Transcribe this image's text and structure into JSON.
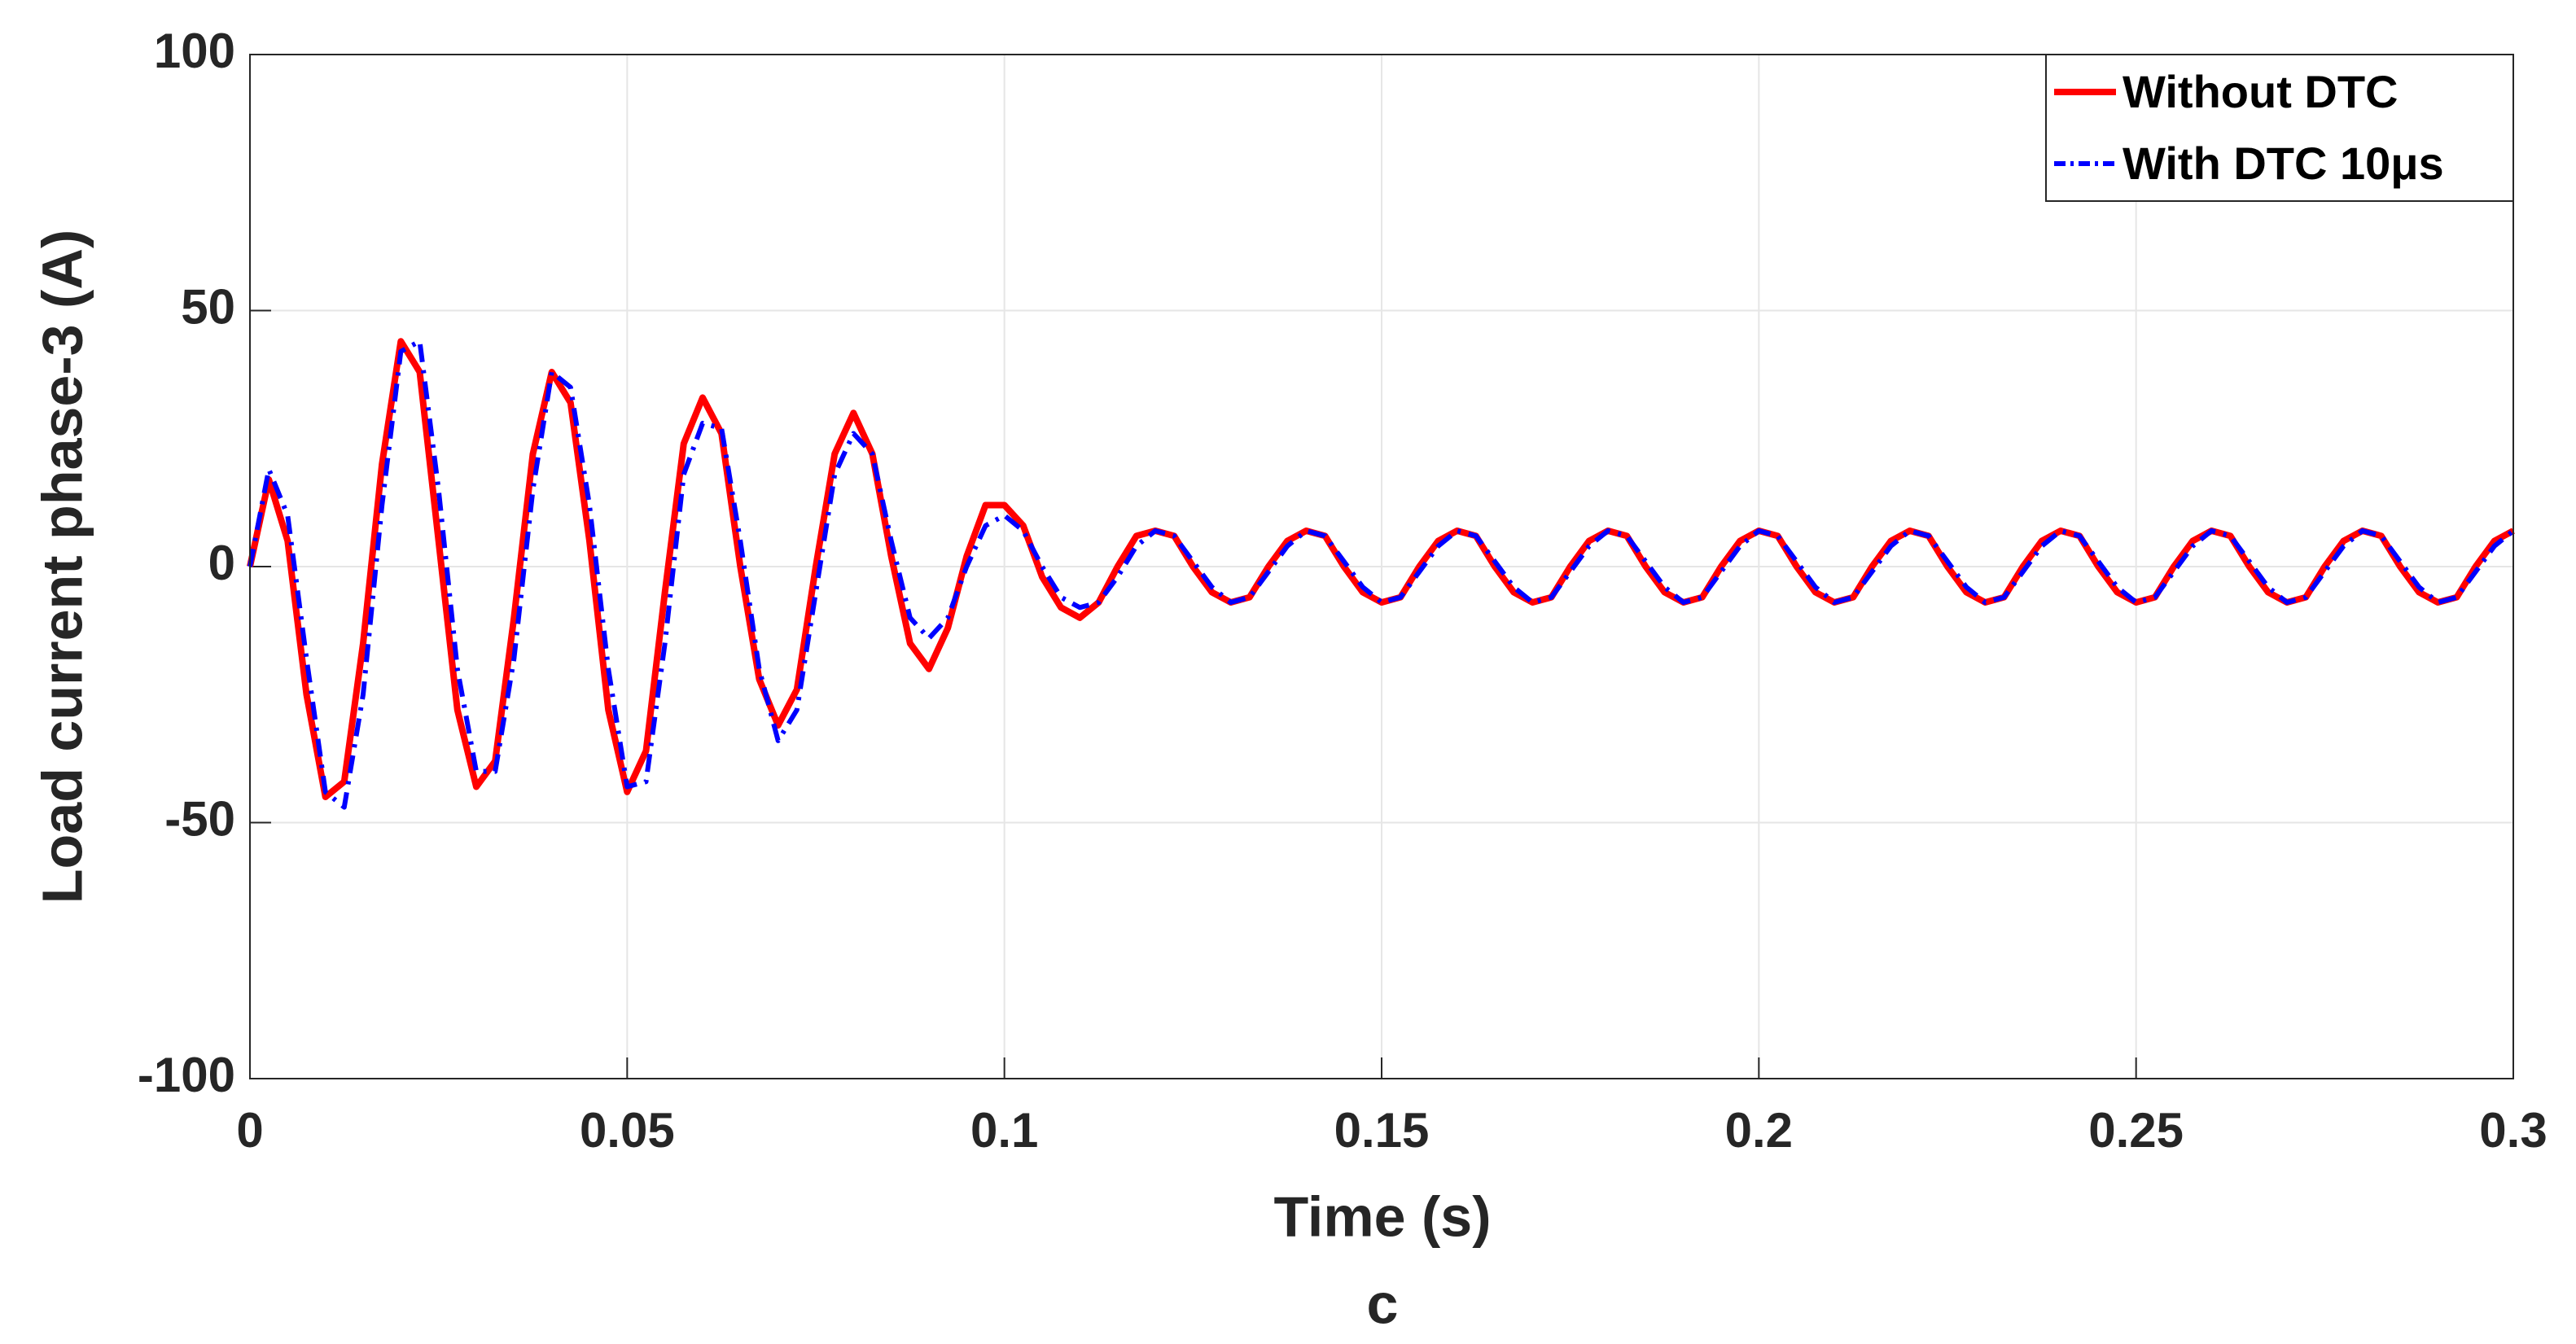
{
  "chart_data": {
    "type": "line",
    "caption": "c",
    "x_label": "Time (s)",
    "y_label": "Load current phase-3 (A)",
    "x": [
      0,
      0.0025,
      0.005,
      0.0075,
      0.01,
      0.0125,
      0.015,
      0.0175,
      0.02,
      0.0225,
      0.025,
      0.0275,
      0.03,
      0.0325,
      0.035,
      0.0375,
      0.04,
      0.0425,
      0.045,
      0.0475,
      0.05,
      0.0525,
      0.055,
      0.0575,
      0.06,
      0.0625,
      0.065,
      0.0675,
      0.07,
      0.0725,
      0.075,
      0.0775,
      0.08,
      0.0825,
      0.085,
      0.0875,
      0.09,
      0.0925,
      0.095,
      0.0975,
      0.1,
      0.1025,
      0.105,
      0.1075,
      0.11,
      0.1125,
      0.115,
      0.1175,
      0.12,
      0.1225,
      0.125,
      0.1275,
      0.13,
      0.1325,
      0.135,
      0.1375,
      0.14,
      0.1425,
      0.145,
      0.1475,
      0.15,
      0.1525,
      0.155,
      0.1575,
      0.16,
      0.1625,
      0.165,
      0.1675,
      0.17,
      0.1725,
      0.175,
      0.1775,
      0.18,
      0.1825,
      0.185,
      0.1875,
      0.19,
      0.1925,
      0.195,
      0.1975,
      0.2,
      0.2025,
      0.205,
      0.2075,
      0.21,
      0.2125,
      0.215,
      0.2175,
      0.22,
      0.2225,
      0.225,
      0.2275,
      0.23,
      0.2325,
      0.235,
      0.2375,
      0.24,
      0.2425,
      0.245,
      0.2475,
      0.25,
      0.2525,
      0.255,
      0.2575,
      0.26,
      0.2625,
      0.265,
      0.2675,
      0.27,
      0.2725,
      0.275,
      0.2775,
      0.28,
      0.2825,
      0.285,
      0.2875,
      0.29,
      0.2925,
      0.295,
      0.2975,
      0.3
    ],
    "series": [
      {
        "name": "Without DTC",
        "color": "#ff0000",
        "line_style": "solid",
        "values": [
          0,
          17,
          5,
          -25,
          -45,
          -42,
          -15,
          20,
          44,
          38,
          5,
          -28,
          -43,
          -38,
          -10,
          22,
          38,
          32,
          5,
          -28,
          -44,
          -36,
          -5,
          24,
          33,
          26,
          0,
          -22,
          -31,
          -24,
          0,
          22,
          30,
          22,
          2,
          -15,
          -20,
          -12,
          2,
          12,
          12,
          8,
          -2,
          -8,
          -10,
          -7,
          0,
          6,
          7,
          6,
          0,
          -5,
          -7,
          -6,
          0,
          5,
          7,
          6,
          0,
          -5,
          -7,
          -6,
          0,
          5,
          7,
          6,
          0,
          -5,
          -7,
          -6,
          0,
          5,
          7,
          6,
          0,
          -5,
          -7,
          -6,
          0,
          5,
          7,
          6,
          0,
          -5,
          -7,
          -6,
          0,
          5,
          7,
          6,
          0,
          -5,
          -7,
          -6,
          0,
          5,
          7,
          6,
          0,
          -5,
          -7,
          -6,
          0,
          5,
          7,
          6,
          0,
          -5,
          -7,
          -6,
          0,
          5,
          7,
          6,
          0,
          -5,
          -7,
          -6,
          0,
          5,
          7
        ]
      },
      {
        "name": "With DTC 10μs",
        "color": "#0000ff",
        "line_style": "dashdot",
        "values": [
          0,
          19,
          10,
          -18,
          -44,
          -47,
          -25,
          12,
          42,
          44,
          15,
          -20,
          -40,
          -40,
          -18,
          15,
          38,
          35,
          12,
          -20,
          -43,
          -42,
          -15,
          18,
          28,
          27,
          5,
          -20,
          -34,
          -28,
          -5,
          18,
          26,
          22,
          5,
          -10,
          -14,
          -10,
          0,
          8,
          10,
          7,
          0,
          -6,
          -8,
          -7,
          -2,
          4,
          7,
          6,
          1,
          -4,
          -7,
          -6,
          -1,
          4,
          7,
          6,
          1,
          -4,
          -7,
          -6,
          -1,
          4,
          7,
          6,
          1,
          -4,
          -7,
          -6,
          -1,
          4,
          7,
          6,
          1,
          -4,
          -7,
          -6,
          -1,
          4,
          7,
          6,
          1,
          -4,
          -7,
          -6,
          -1,
          4,
          7,
          6,
          1,
          -4,
          -7,
          -6,
          -1,
          4,
          7,
          6,
          1,
          -4,
          -7,
          -6,
          -1,
          4,
          7,
          6,
          1,
          -4,
          -7,
          -6,
          -1,
          4,
          7,
          6,
          1,
          -4,
          -7,
          -6,
          -1,
          4,
          7
        ]
      }
    ],
    "xlim": [
      0,
      0.3
    ],
    "xticks": [
      0,
      0.05,
      0.1,
      0.15,
      0.2,
      0.25,
      0.3
    ],
    "ylim": [
      -100,
      100
    ],
    "yticks": [
      -100,
      -50,
      0,
      50,
      100
    ],
    "grid": true,
    "legend": "top-right"
  }
}
